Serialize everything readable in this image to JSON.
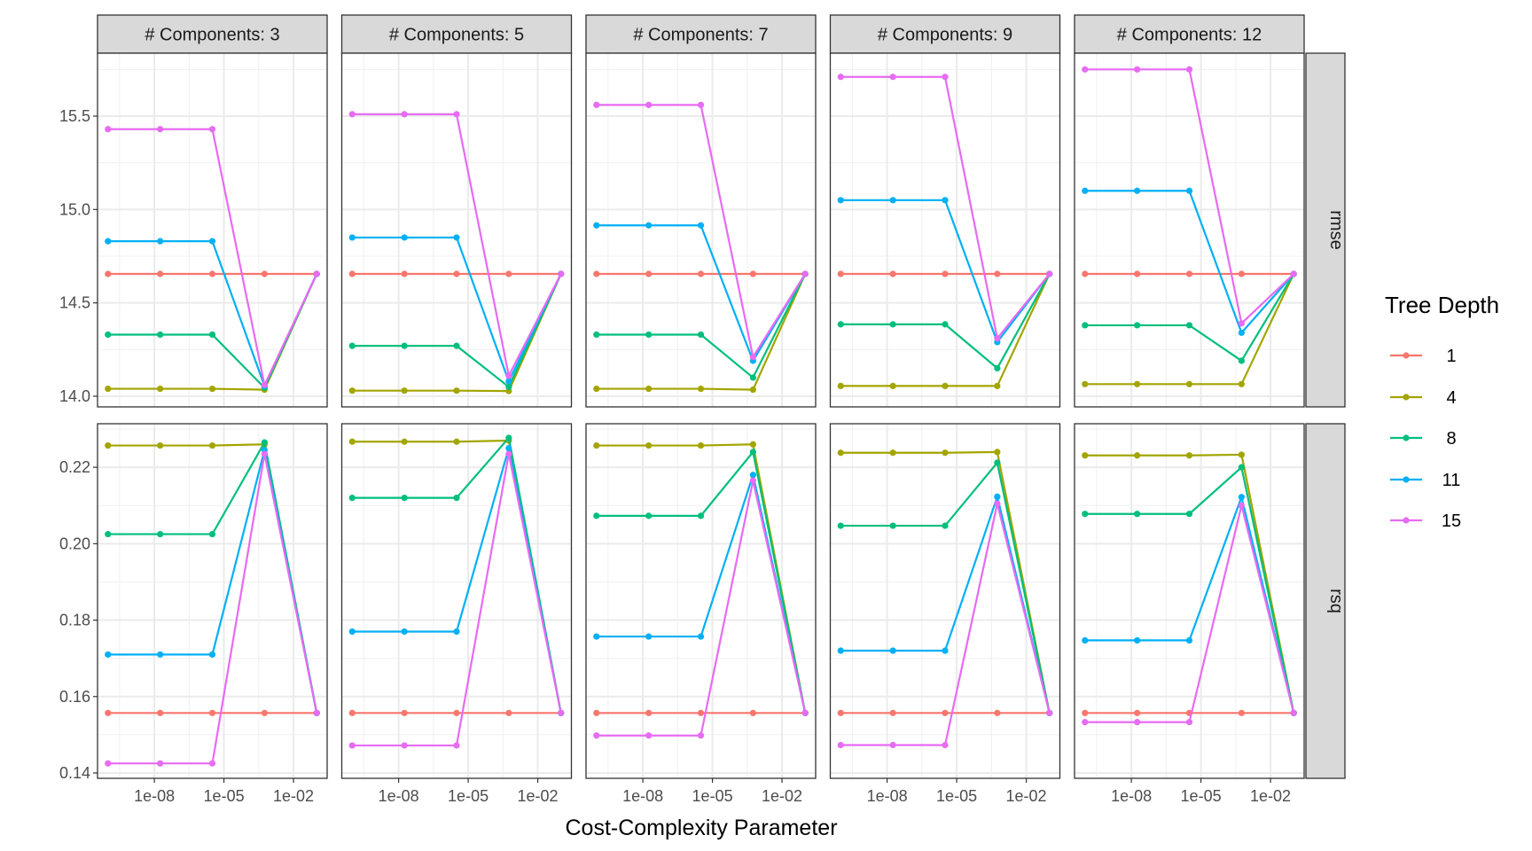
{
  "chart_data": {
    "type": "line",
    "xlabel": "Cost-Complexity Parameter",
    "x_scale": "log10",
    "x_log10": [
      -10,
      -7.75,
      -5.5,
      -3.25,
      -1
    ],
    "xlim_log10": [
      -10.45,
      -0.55
    ],
    "x_ticks": [
      {
        "v": -8,
        "label": "1e-08"
      },
      {
        "v": -5,
        "label": "1e-05"
      },
      {
        "v": -2,
        "label": "1e-02"
      }
    ],
    "x_minor": [
      -9.5,
      -6.5,
      -3.5
    ],
    "column_facets": [
      "# Components: 3",
      "# Components: 5",
      "# Components: 7",
      "# Components: 9",
      "# Components: 12"
    ],
    "row_facets": [
      {
        "label": "rmse",
        "ylim": [
          13.943,
          15.837
        ],
        "ticks": [
          {
            "v": 14.0,
            "label": "14.0"
          },
          {
            "v": 14.5,
            "label": "14.5"
          },
          {
            "v": 15.0,
            "label": "15.0"
          },
          {
            "v": 15.5,
            "label": "15.5"
          }
        ],
        "minor": [
          14.25,
          14.75,
          15.25,
          15.75
        ]
      },
      {
        "label": "rsq",
        "ylim": [
          0.1386,
          0.2314
        ],
        "ticks": [
          {
            "v": 0.14,
            "label": "0.14"
          },
          {
            "v": 0.16,
            "label": "0.16"
          },
          {
            "v": 0.18,
            "label": "0.18"
          },
          {
            "v": 0.2,
            "label": "0.20"
          },
          {
            "v": 0.22,
            "label": "0.22"
          }
        ],
        "minor": [
          0.15,
          0.17,
          0.19,
          0.21,
          0.23
        ]
      }
    ],
    "legend": {
      "title": "Tree Depth",
      "placement": "right"
    },
    "series": [
      {
        "name": "1",
        "color": "#F8766D",
        "rmse": [
          [
            14.655,
            14.655,
            14.655,
            14.655,
            14.655
          ],
          [
            14.655,
            14.655,
            14.655,
            14.655,
            14.655
          ],
          [
            14.655,
            14.655,
            14.655,
            14.655,
            14.655
          ],
          [
            14.655,
            14.655,
            14.655,
            14.655,
            14.655
          ],
          [
            14.655,
            14.655,
            14.655,
            14.655,
            14.655
          ]
        ],
        "rsq": [
          [
            0.1557,
            0.1557,
            0.1557,
            0.1557,
            0.1557
          ],
          [
            0.1557,
            0.1557,
            0.1557,
            0.1557,
            0.1557
          ],
          [
            0.1557,
            0.1557,
            0.1557,
            0.1557,
            0.1557
          ],
          [
            0.1557,
            0.1557,
            0.1557,
            0.1557,
            0.1557
          ],
          [
            0.1557,
            0.1557,
            0.1557,
            0.1557,
            0.1557
          ]
        ]
      },
      {
        "name": "4",
        "color": "#A3A500",
        "rmse": [
          [
            14.04,
            14.04,
            14.04,
            14.035,
            14.655
          ],
          [
            14.03,
            14.03,
            14.03,
            14.028,
            14.655
          ],
          [
            14.04,
            14.04,
            14.04,
            14.035,
            14.655
          ],
          [
            14.055,
            14.055,
            14.055,
            14.055,
            14.655
          ],
          [
            14.065,
            14.065,
            14.065,
            14.065,
            14.655
          ]
        ],
        "rsq": [
          [
            0.2257,
            0.2257,
            0.2257,
            0.226,
            0.1557
          ],
          [
            0.2267,
            0.2267,
            0.2267,
            0.227,
            0.1557
          ],
          [
            0.2257,
            0.2257,
            0.2257,
            0.226,
            0.1557
          ],
          [
            0.2238,
            0.2238,
            0.2238,
            0.224,
            0.1557
          ],
          [
            0.2231,
            0.2231,
            0.2231,
            0.2233,
            0.1557
          ]
        ]
      },
      {
        "name": "8",
        "color": "#00BF7D",
        "rmse": [
          [
            14.33,
            14.33,
            14.33,
            14.045,
            14.655
          ],
          [
            14.27,
            14.27,
            14.27,
            14.05,
            14.655
          ],
          [
            14.33,
            14.33,
            14.33,
            14.1,
            14.655
          ],
          [
            14.385,
            14.385,
            14.385,
            14.15,
            14.655
          ],
          [
            14.38,
            14.38,
            14.38,
            14.19,
            14.655
          ]
        ],
        "rsq": [
          [
            0.2025,
            0.2025,
            0.2025,
            0.2265,
            0.1557
          ],
          [
            0.212,
            0.212,
            0.212,
            0.2277,
            0.1557
          ],
          [
            0.2073,
            0.2073,
            0.2073,
            0.224,
            0.1557
          ],
          [
            0.2047,
            0.2047,
            0.2047,
            0.2212,
            0.1557
          ],
          [
            0.2078,
            0.2078,
            0.2078,
            0.22,
            0.1557
          ]
        ]
      },
      {
        "name": "11",
        "color": "#00B0F6",
        "rmse": [
          [
            14.83,
            14.83,
            14.83,
            14.055,
            14.655
          ],
          [
            14.85,
            14.85,
            14.85,
            14.08,
            14.655
          ],
          [
            14.915,
            14.915,
            14.915,
            14.19,
            14.655
          ],
          [
            15.05,
            15.05,
            15.05,
            14.29,
            14.655
          ],
          [
            15.1,
            15.1,
            15.1,
            14.34,
            14.655
          ]
        ],
        "rsq": [
          [
            0.171,
            0.171,
            0.171,
            0.2245,
            0.1557
          ],
          [
            0.177,
            0.177,
            0.177,
            0.225,
            0.1557
          ],
          [
            0.1757,
            0.1757,
            0.1757,
            0.218,
            0.1557
          ],
          [
            0.172,
            0.172,
            0.172,
            0.2123,
            0.1557
          ],
          [
            0.1747,
            0.1747,
            0.1747,
            0.2122,
            0.1557
          ]
        ]
      },
      {
        "name": "15",
        "color": "#E76BF3",
        "rmse": [
          [
            15.43,
            15.43,
            15.43,
            14.06,
            14.655
          ],
          [
            15.51,
            15.51,
            15.51,
            14.11,
            14.655
          ],
          [
            15.56,
            15.56,
            15.56,
            14.21,
            14.655
          ],
          [
            15.71,
            15.71,
            15.71,
            14.31,
            14.655
          ],
          [
            15.75,
            15.75,
            15.75,
            14.39,
            14.655
          ]
        ],
        "rsq": [
          [
            0.1425,
            0.1425,
            0.1425,
            0.2235,
            0.1557
          ],
          [
            0.1472,
            0.1472,
            0.1472,
            0.2235,
            0.1557
          ],
          [
            0.1498,
            0.1498,
            0.1498,
            0.2165,
            0.1557
          ],
          [
            0.1473,
            0.1473,
            0.1473,
            0.2105,
            0.1557
          ],
          [
            0.1533,
            0.1533,
            0.1533,
            0.21,
            0.1557
          ]
        ]
      }
    ]
  }
}
